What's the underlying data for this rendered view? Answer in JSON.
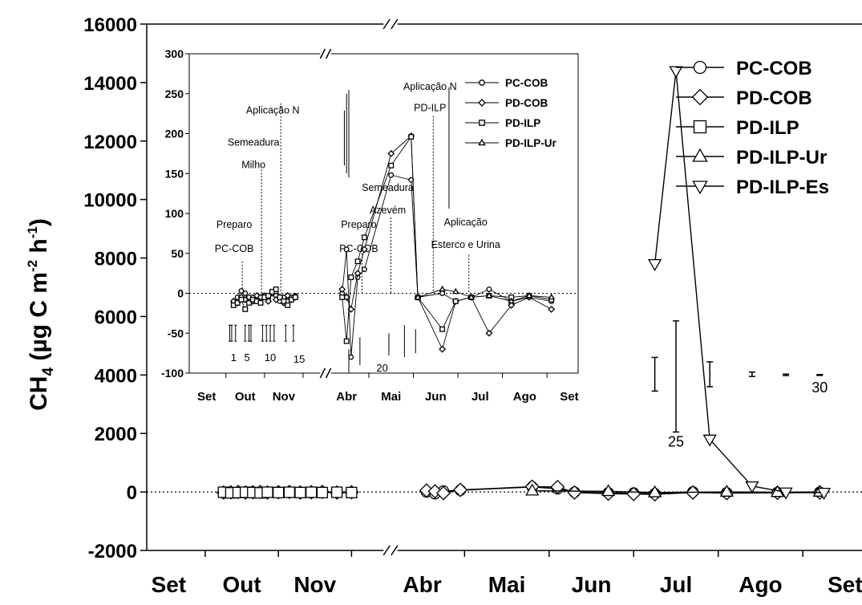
{
  "chart_data": [
    {
      "type": "line",
      "title": "",
      "ylabel": "CH4 (µg C m-2 h-1)",
      "ylabel_parts": {
        "base": "CH",
        "sub": "4",
        "unit_open": " (µg C m",
        "exp1": "-2",
        "mid": " h",
        "exp2": "-1",
        "close": ")"
      },
      "xlabel": "",
      "ylim": [
        -2000,
        16000
      ],
      "yticks": [
        "-2000",
        "0",
        "2000",
        "4000",
        "6000",
        "8000",
        "10000",
        "12000",
        "14000",
        "16000"
      ],
      "x_tick_labels": [
        "Set",
        "Out",
        "Nov",
        "Abr",
        "Mai",
        "Jun",
        "Jul",
        "Ago",
        "Set"
      ],
      "axis_break": "between Nov and Abr",
      "legend_position": "top-right",
      "grid": false,
      "zero_line": "dotted",
      "x_unit": "month index (Set=0 ... Nov=2; Abr=7 ... Set=12)",
      "series": [
        {
          "name": "PC-COB",
          "marker": "circle",
          "x": [
            0.75,
            0.85,
            0.95,
            1.05,
            1.15,
            1.25,
            1.35,
            1.5,
            1.65,
            1.8,
            1.95,
            2.1,
            2.3,
            2.5,
            7.05,
            7.15,
            7.25,
            7.45,
            8.3,
            8.6,
            8.8,
            9.2,
            9.5,
            9.75,
            10.2,
            10.6,
            11.2,
            11.7
          ],
          "y": [
            -30,
            -20,
            -10,
            0,
            -30,
            -20,
            -10,
            0,
            -20,
            -10,
            -30,
            0,
            -10,
            -20,
            0,
            -60,
            30,
            60,
            170,
            110,
            -10,
            -30,
            -40,
            -60,
            0,
            -30,
            -20,
            -10
          ]
        },
        {
          "name": "PD-COB",
          "marker": "diamond",
          "x": [
            0.75,
            0.85,
            0.95,
            1.05,
            1.15,
            1.25,
            1.35,
            1.5,
            1.65,
            1.8,
            1.95,
            2.1,
            2.3,
            2.5,
            7.05,
            7.15,
            7.25,
            7.45,
            8.3,
            8.6,
            8.8,
            9.2,
            9.5,
            9.75,
            10.2,
            10.6,
            11.2,
            11.7
          ],
          "y": [
            -20,
            -10,
            0,
            -20,
            -10,
            0,
            -20,
            -10,
            0,
            -20,
            -10,
            0,
            -20,
            -10,
            50,
            20,
            -40,
            70,
            180,
            170,
            -20,
            -60,
            -70,
            -80,
            -20,
            -40,
            -30,
            -20
          ]
        },
        {
          "name": "PD-ILP",
          "marker": "square",
          "x": [
            0.75,
            0.85,
            0.95,
            1.05,
            1.15,
            1.25,
            1.35,
            1.5,
            1.65,
            1.8,
            1.95,
            2.1,
            2.3,
            2.5
          ],
          "y": [
            -10,
            -30,
            -20,
            -10,
            -20,
            -30,
            -10,
            -20,
            -10,
            -20,
            -10,
            -20,
            -10,
            -20
          ]
        },
        {
          "name": "PD-ILP-Ur",
          "marker": "triangle-up",
          "x": [
            8.3,
            9.2,
            9.75,
            10.6,
            11.2,
            11.7
          ],
          "y": [
            40,
            20,
            -20,
            0,
            -10,
            0
          ]
        },
        {
          "name": "PD-ILP-Es",
          "marker": "triangle-down",
          "x": [
            9.75,
            10.0,
            10.4,
            10.9,
            11.3,
            11.75
          ],
          "y": [
            7800,
            14400,
            1800,
            200,
            -10,
            -20
          ]
        }
      ],
      "error_bars": [
        {
          "x": 9.75,
          "low": 3450,
          "high": 4600
        },
        {
          "x": 10.0,
          "low": 2050,
          "high": 5850
        },
        {
          "x": 10.4,
          "low": 3600,
          "high": 4450
        },
        {
          "x": 10.9,
          "low": 3950,
          "high": 4100
        },
        {
          "x": 11.3,
          "low": 3980,
          "high": 4030
        },
        {
          "x": 11.7,
          "low": 3985,
          "high": 4015
        }
      ],
      "bar_labels": [
        {
          "text": "25",
          "x": 10.0,
          "y": 1800
        },
        {
          "text": "30",
          "x": 11.7,
          "y": 3650
        }
      ]
    },
    {
      "type": "line",
      "title": "",
      "inset": true,
      "ylim": [
        -100,
        300
      ],
      "yticks": [
        "-100",
        "-50",
        "0",
        "50",
        "100",
        "150",
        "200",
        "250",
        "300"
      ],
      "x_tick_labels": [
        "Set",
        "Out",
        "Nov",
        "Abr",
        "Mai",
        "Jun",
        "Jul",
        "Ago",
        "Set"
      ],
      "axis_break": "between Nov and Abr",
      "legend_position": "top-right",
      "zero_line": "dotted",
      "series": [
        {
          "name": "PC-COB",
          "marker": "circle",
          "x": [
            0.7,
            0.8,
            0.9,
            1.0,
            1.1,
            1.2,
            1.3,
            1.4,
            1.5,
            1.6,
            1.7,
            1.8,
            1.9,
            2.0,
            2.1,
            2.2,
            2.3,
            6.9,
            7.0,
            7.1,
            7.25,
            7.4,
            8.0,
            8.45,
            8.6,
            9.15,
            9.45,
            9.8,
            10.2,
            10.7,
            11.1,
            11.6
          ],
          "y": [
            -10,
            -5,
            3,
            0,
            -10,
            -5,
            -8,
            -5,
            -3,
            -6,
            0,
            -3,
            -10,
            -5,
            -10,
            -5,
            -3,
            0,
            55,
            -80,
            20,
            30,
            148,
            142,
            -5,
            0,
            -10,
            -5,
            5,
            -10,
            -5,
            -10
          ]
        },
        {
          "name": "PD-COB",
          "marker": "diamond",
          "x": [
            0.7,
            0.8,
            0.9,
            1.0,
            1.1,
            1.2,
            1.3,
            1.4,
            1.5,
            1.6,
            1.7,
            1.8,
            1.9,
            2.0,
            2.1,
            2.2,
            2.3,
            6.9,
            7.0,
            7.1,
            7.25,
            7.4,
            8.0,
            8.45,
            8.6,
            9.15,
            9.45,
            9.8,
            10.2,
            10.7,
            11.1,
            11.6
          ],
          "y": [
            -10,
            -12,
            -5,
            -8,
            -5,
            -10,
            -3,
            -5,
            -3,
            -10,
            0,
            -8,
            -5,
            -12,
            -3,
            -8,
            -5,
            5,
            -5,
            -20,
            25,
            55,
            175,
            197,
            -5,
            -70,
            -10,
            -5,
            -50,
            -15,
            -5,
            -20
          ]
        },
        {
          "name": "PD-ILP",
          "marker": "square",
          "x": [
            0.7,
            0.8,
            0.9,
            1.0,
            1.1,
            1.2,
            1.3,
            1.4,
            1.5,
            1.6,
            1.7,
            1.8,
            1.9,
            2.0,
            2.1,
            2.2,
            2.3,
            6.9,
            7.0,
            7.1,
            7.25,
            7.4,
            8.0,
            8.45,
            8.6,
            9.15,
            9.45,
            9.8,
            10.2,
            10.7,
            11.1,
            11.6
          ],
          "y": [
            -15,
            -12,
            -8,
            -20,
            -12,
            -8,
            -10,
            -12,
            -5,
            -3,
            2,
            5,
            -5,
            -10,
            -15,
            -8,
            -5,
            -5,
            -60,
            20,
            40,
            70,
            160,
            196,
            -5,
            -45,
            -10,
            -5,
            -3,
            -5,
            -3,
            -8
          ]
        },
        {
          "name": "PD-ILP-Ur",
          "marker": "triangle-up",
          "x": [
            8.6,
            9.15,
            9.45,
            9.8,
            10.2,
            10.7,
            11.1,
            11.6
          ],
          "y": [
            -5,
            5,
            2,
            -5,
            -3,
            -10,
            -3,
            -5
          ]
        }
      ],
      "error_bars": [
        {
          "x": 6.95,
          "low": 160,
          "high": 229
        },
        {
          "x": 7.0,
          "low": 150,
          "high": 250
        },
        {
          "x": 7.05,
          "low": 145,
          "high": 255
        },
        {
          "x": 9.3,
          "low": 106,
          "high": 258
        }
      ],
      "small_bars_x": [
        0.6,
        0.65,
        0.75,
        1.0,
        1.1,
        1.15,
        1.45,
        1.55,
        1.65,
        1.75,
        2.05,
        2.25
      ],
      "small_bars_range": [
        -40,
        -60
      ],
      "lower_bars": [
        {
          "x": 7.05,
          "low": -100,
          "high": -70
        },
        {
          "x": 7.3,
          "low": -90,
          "high": -55
        },
        {
          "x": 7.95,
          "low": -78,
          "high": -50
        },
        {
          "x": 8.3,
          "low": -80,
          "high": -40
        },
        {
          "x": 8.55,
          "low": -75,
          "high": -45
        }
      ],
      "bar_labels": [
        {
          "text": "1",
          "x": 0.7,
          "y": -80
        },
        {
          "text": "5",
          "x": 1.05,
          "y": -80
        },
        {
          "text": "10",
          "x": 1.65,
          "y": -80
        },
        {
          "text": "15",
          "x": 2.4,
          "y": -82
        },
        {
          "text": "20",
          "x": 7.8,
          "y": -93
        }
      ],
      "annotations": [
        {
          "text": "Aplicação N",
          "x": 1.55,
          "y_text": 225,
          "line_top": 238
        },
        {
          "text": "Semeadura",
          "x": 1.05,
          "y_text": 185
        },
        {
          "text": "Milho",
          "x": 1.05,
          "y_text": 157,
          "line_top": 155
        },
        {
          "text": "Preparo",
          "x": 0.55,
          "y_text": 82
        },
        {
          "text": "PC-COB",
          "x": 0.55,
          "y_text": 52,
          "line_top": 40
        },
        {
          "text": "Semeadura",
          "x": 7.6,
          "y_text": 128
        },
        {
          "text": "Azevém",
          "x": 7.6,
          "y_text": 100,
          "line_top": 95
        },
        {
          "text": "Preparo",
          "x": 6.95,
          "y_text": 82
        },
        {
          "text": "PC-COB",
          "x": 6.95,
          "y_text": 52,
          "line_top": 58
        },
        {
          "text": "Aplicação N",
          "x": 8.55,
          "y_text": 255
        },
        {
          "text": "PD-ILP",
          "x": 8.55,
          "y_text": 228,
          "line_top": 222
        },
        {
          "text": "Aplicação",
          "x": 9.35,
          "y_text": 85
        },
        {
          "text": "Esterco e Urina",
          "x": 9.35,
          "y_text": 57,
          "line_top": 48
        }
      ]
    }
  ]
}
